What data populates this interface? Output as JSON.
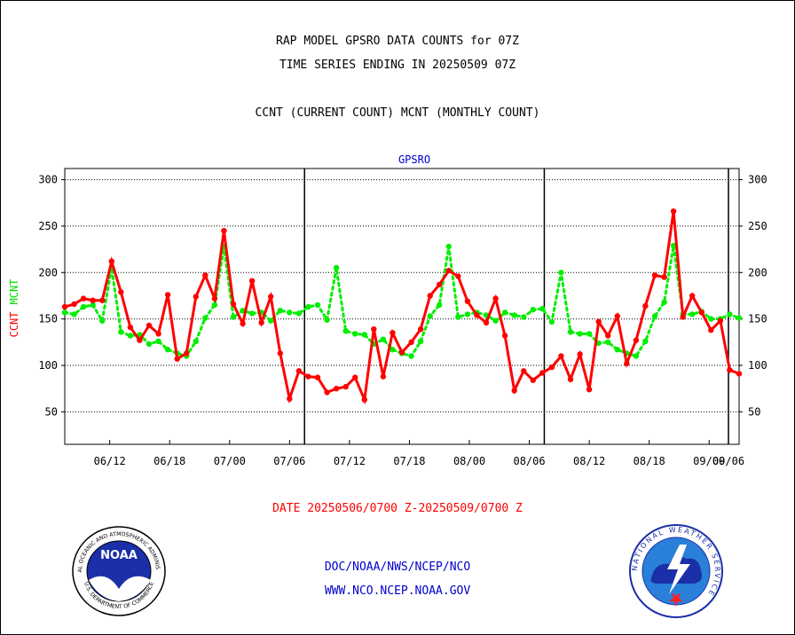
{
  "header": {
    "line1": "RAP MODEL GPSRO DATA COUNTS for 07Z",
    "line2": "TIME SERIES ENDING IN 20250509 07Z",
    "line3": "CCNT (CURRENT COUNT) MCNT (MONTHLY COUNT)"
  },
  "footer": {
    "date_range": "DATE 20250506/0700 Z-20250509/0700 Z",
    "org": "DOC/NOAA/NWS/NCEP/NCO",
    "url": "WWW.NCO.NCEP.NOAA.GOV"
  },
  "logos": {
    "noaa": "NOAA",
    "noaa_ring": "NATIONAL OCEANIC AND ATMOSPHERIC ADMINISTRATION",
    "noaa_ring_bottom": "U.S. DEPARTMENT OF COMMERCE",
    "nws_ring": "NATIONAL WEATHER SERVICE"
  },
  "chart_data": {
    "type": "line",
    "title": "GPSRO",
    "ylabel_left": [
      "CCNT",
      "MCNT"
    ],
    "ylim": [
      15,
      312
    ],
    "yticks": [
      50,
      100,
      150,
      200,
      250,
      300
    ],
    "xlim": [
      0,
      90
    ],
    "x_tick_labels": [
      {
        "x": 6,
        "label": "06/12"
      },
      {
        "x": 14,
        "label": "06/18"
      },
      {
        "x": 22,
        "label": "07/00"
      },
      {
        "x": 30,
        "label": "07/06"
      },
      {
        "x": 38,
        "label": "07/12"
      },
      {
        "x": 46,
        "label": "07/18"
      },
      {
        "x": 54,
        "label": "08/00"
      },
      {
        "x": 62,
        "label": "08/06"
      },
      {
        "x": 70,
        "label": "08/12"
      },
      {
        "x": 78,
        "label": "08/18"
      },
      {
        "x": 86,
        "label": "09/00"
      },
      {
        "x": 94,
        "label": "09/06"
      }
    ],
    "day_dividers": [
      32,
      64,
      96
    ],
    "grid": true,
    "series": [
      {
        "name": "CCNT",
        "color": "#ff0000",
        "style": "solid",
        "values": [
          163,
          166,
          172,
          170,
          170,
          212,
          179,
          141,
          127,
          143,
          134,
          176,
          107,
          113,
          174,
          197,
          172,
          245,
          166,
          145,
          191,
          146,
          174,
          113,
          64,
          94,
          88,
          87,
          71,
          75,
          77,
          87,
          63,
          139,
          88,
          135,
          114,
          125,
          139,
          175,
          187,
          202,
          196,
          169,
          154,
          146,
          172,
          132,
          73,
          94,
          84,
          92,
          98,
          110,
          85,
          112,
          74,
          147,
          132,
          153,
          102,
          127,
          164,
          197,
          195,
          266,
          152,
          175,
          157,
          138,
          148,
          95,
          91
        ]
      },
      {
        "name": "MCNT",
        "color": "#00ee00",
        "style": "dotted",
        "values": [
          157,
          155,
          163,
          165,
          148,
          205,
          136,
          132,
          133,
          123,
          126,
          117,
          113,
          110,
          126,
          151,
          165,
          228,
          152,
          159,
          156,
          157,
          148,
          159,
          157,
          156,
          163,
          165,
          149,
          205,
          137,
          134,
          133,
          123,
          128,
          117,
          113,
          110,
          126,
          153,
          165,
          228,
          152,
          155,
          157,
          154,
          148,
          157,
          154,
          152,
          160,
          161,
          147,
          200,
          136,
          134,
          134,
          124,
          125,
          117,
          113,
          110,
          126,
          153,
          168,
          229,
          155,
          155,
          158,
          150,
          150,
          155,
          151
        ]
      }
    ]
  }
}
